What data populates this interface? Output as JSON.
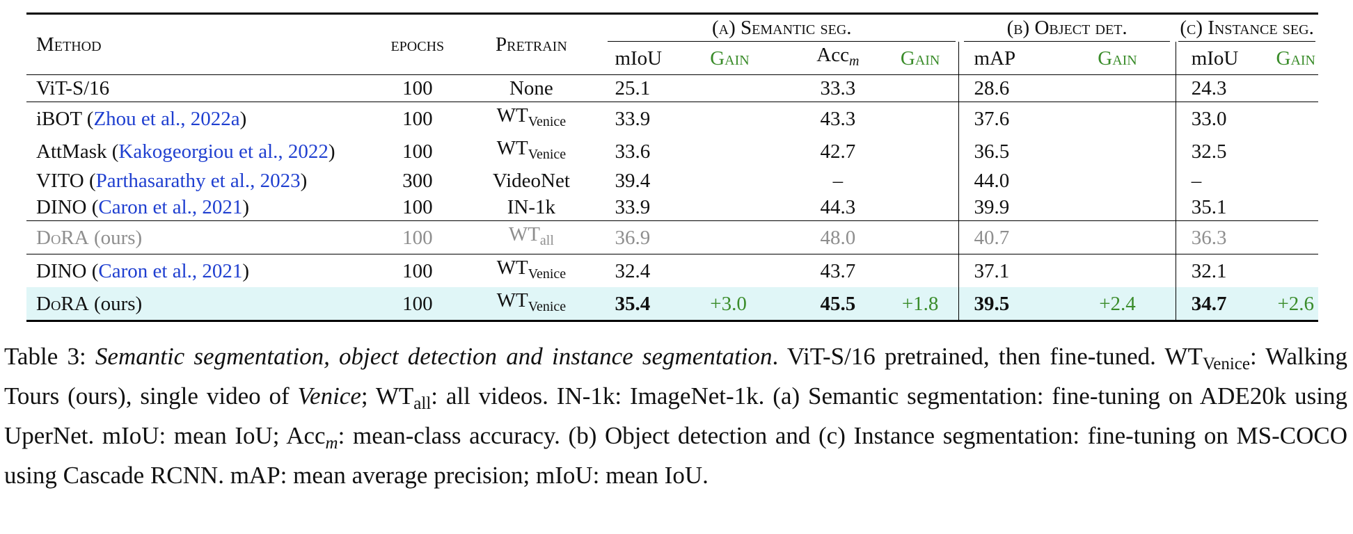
{
  "table": {
    "header": {
      "method": "Method",
      "epochs": "epochs",
      "pretrain": "Pretrain",
      "group_a": "(a) Semantic seg.",
      "group_b": "(b) Object det.",
      "group_c": "(c) Instance seg.",
      "miou": "mIoU",
      "gain": "Gain",
      "acc": "Acc",
      "acc_sub": "m",
      "map": "mAP"
    },
    "rows": [
      {
        "method": "ViT-S/16",
        "cite": "",
        "cite_year": "",
        "cite_end": "",
        "epochs": "100",
        "pretrain": "None",
        "pretrain_sub": "",
        "a_miou": "25.1",
        "a_gain": "",
        "a_acc": "33.3",
        "a_gain2": "",
        "b_map": "28.6",
        "b_gain": "",
        "c_miou": "24.3",
        "c_gain": ""
      },
      {
        "method": "iBOT ",
        "cite": "Zhou et al., ",
        "cite_year": "2022a",
        "cite_end": ")",
        "epochs": "100",
        "pretrain": "WT",
        "pretrain_sub": "Venice",
        "a_miou": "33.9",
        "a_gain": "",
        "a_acc": "43.3",
        "a_gain2": "",
        "b_map": "37.6",
        "b_gain": "",
        "c_miou": "33.0",
        "c_gain": ""
      },
      {
        "method": "AttMask ",
        "cite": "Kakogeorgiou et al., ",
        "cite_year": "2022",
        "cite_end": ")",
        "epochs": "100",
        "pretrain": "WT",
        "pretrain_sub": "Venice",
        "a_miou": "33.6",
        "a_gain": "",
        "a_acc": "42.7",
        "a_gain2": "",
        "b_map": "36.5",
        "b_gain": "",
        "c_miou": "32.5",
        "c_gain": ""
      },
      {
        "method": "VITO ",
        "cite": "Parthasarathy et al., ",
        "cite_year": "2023",
        "cite_end": ")",
        "epochs": "300",
        "pretrain": "VideoNet",
        "pretrain_sub": "",
        "a_miou": "39.4",
        "a_gain": "",
        "a_acc": "–",
        "a_gain2": "",
        "b_map": "44.0",
        "b_gain": "",
        "c_miou": "–",
        "c_gain": ""
      },
      {
        "method": "DINO ",
        "cite": "Caron et al., ",
        "cite_year": "2021",
        "cite_end": ")",
        "epochs": "100",
        "pretrain": "IN-1k",
        "pretrain_sub": "",
        "a_miou": "33.9",
        "a_gain": "",
        "a_acc": "44.3",
        "a_gain2": "",
        "b_map": "39.9",
        "b_gain": "",
        "c_miou": "35.1",
        "c_gain": ""
      },
      {
        "method": "DoRA (ours)",
        "cite": "",
        "cite_year": "",
        "cite_end": "",
        "epochs": "100",
        "pretrain": "WT",
        "pretrain_sub": "all",
        "a_miou": "36.9",
        "a_gain": "",
        "a_acc": "48.0",
        "a_gain2": "",
        "b_map": "40.7",
        "b_gain": "",
        "c_miou": "36.3",
        "c_gain": ""
      },
      {
        "method": "DINO ",
        "cite": "Caron et al., ",
        "cite_year": "2021",
        "cite_end": ")",
        "epochs": "100",
        "pretrain": "WT",
        "pretrain_sub": "Venice",
        "a_miou": "32.4",
        "a_gain": "",
        "a_acc": "43.7",
        "a_gain2": "",
        "b_map": "37.1",
        "b_gain": "",
        "c_miou": "32.1",
        "c_gain": ""
      },
      {
        "method": "DoRA (ours)",
        "cite": "",
        "cite_year": "",
        "cite_end": "",
        "epochs": "100",
        "pretrain": "WT",
        "pretrain_sub": "Venice",
        "a_miou": "35.4",
        "a_gain": "+3.0",
        "a_acc": "45.5",
        "a_gain2": "+1.8",
        "b_map": "39.5",
        "b_gain": "+2.4",
        "c_miou": "34.7",
        "c_gain": "+2.6"
      }
    ]
  },
  "caption": {
    "label": "Table 3: ",
    "title": "Semantic segmentation, object detection and instance segmentation",
    "t1": ". ViT-S/16 pretrained, then fine-tuned. WT",
    "sub_venice": "Venice",
    "t2": ": Walking Tours (ours), single video of ",
    "venice": "Venice",
    "t3": "; WT",
    "sub_all": "all",
    "t4": ": all videos. IN-1k: ImageNet-1k. (a) Semantic segmentation: fine-tuning on ADE20k using UperNet. mIoU: mean IoU; Acc",
    "sub_m": "m",
    "t5": ": mean-class accuracy. (b) Object detection and (c) Instance segmentation: fine-tuning on MS-COCO using Cascade RCNN. mAP: mean average precision; mIoU: mean IoU."
  }
}
